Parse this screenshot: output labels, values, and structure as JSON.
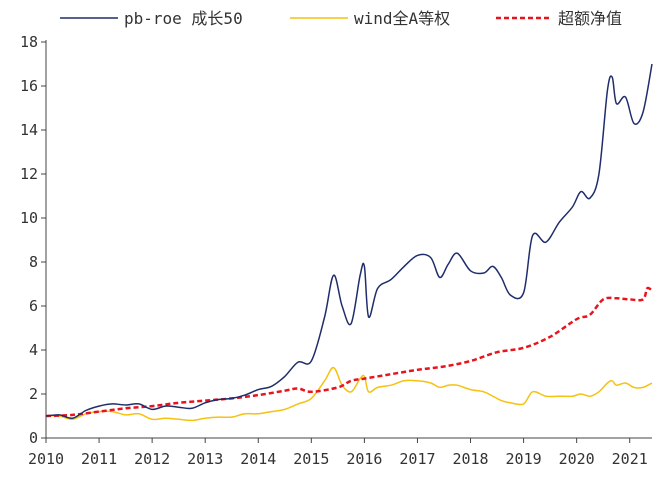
{
  "chart_data": {
    "type": "line",
    "title": "",
    "xlabel": "",
    "ylabel": "",
    "x_ticks": [
      "2010",
      "2011",
      "2012",
      "2013",
      "2014",
      "2015",
      "2016",
      "2017",
      "2018",
      "2019",
      "2020",
      "2021"
    ],
    "y_ticks": [
      "0",
      "2",
      "4",
      "6",
      "8",
      "10",
      "12",
      "14",
      "16",
      "18"
    ],
    "xlim": [
      2010.0,
      2021.42
    ],
    "ylim": [
      0,
      18
    ],
    "grid": false,
    "legend_position": "top",
    "series": [
      {
        "name": "pb-roe 成长50",
        "color": "#1f2d6b",
        "style": "solid",
        "points": [
          [
            2010.0,
            1.0
          ],
          [
            2010.25,
            1.05
          ],
          [
            2010.5,
            0.9
          ],
          [
            2010.75,
            1.25
          ],
          [
            2011.0,
            1.45
          ],
          [
            2011.25,
            1.55
          ],
          [
            2011.5,
            1.5
          ],
          [
            2011.75,
            1.55
          ],
          [
            2012.0,
            1.3
          ],
          [
            2012.25,
            1.45
          ],
          [
            2012.5,
            1.4
          ],
          [
            2012.75,
            1.35
          ],
          [
            2013.0,
            1.6
          ],
          [
            2013.25,
            1.75
          ],
          [
            2013.5,
            1.8
          ],
          [
            2013.75,
            1.95
          ],
          [
            2014.0,
            2.2
          ],
          [
            2014.25,
            2.35
          ],
          [
            2014.5,
            2.8
          ],
          [
            2014.75,
            3.45
          ],
          [
            2015.0,
            3.5
          ],
          [
            2015.25,
            5.5
          ],
          [
            2015.42,
            7.4
          ],
          [
            2015.58,
            6.0
          ],
          [
            2015.75,
            5.2
          ],
          [
            2015.92,
            7.4
          ],
          [
            2016.0,
            7.8
          ],
          [
            2016.08,
            5.5
          ],
          [
            2016.25,
            6.8
          ],
          [
            2016.5,
            7.2
          ],
          [
            2016.75,
            7.8
          ],
          [
            2017.0,
            8.3
          ],
          [
            2017.25,
            8.2
          ],
          [
            2017.42,
            7.3
          ],
          [
            2017.58,
            7.9
          ],
          [
            2017.75,
            8.4
          ],
          [
            2018.0,
            7.6
          ],
          [
            2018.25,
            7.5
          ],
          [
            2018.42,
            7.8
          ],
          [
            2018.58,
            7.3
          ],
          [
            2018.75,
            6.5
          ],
          [
            2019.0,
            6.6
          ],
          [
            2019.17,
            9.2
          ],
          [
            2019.42,
            8.9
          ],
          [
            2019.67,
            9.8
          ],
          [
            2019.92,
            10.5
          ],
          [
            2020.08,
            11.2
          ],
          [
            2020.25,
            10.9
          ],
          [
            2020.42,
            12.0
          ],
          [
            2020.58,
            15.8
          ],
          [
            2020.67,
            16.4
          ],
          [
            2020.75,
            15.2
          ],
          [
            2020.92,
            15.5
          ],
          [
            2021.08,
            14.3
          ],
          [
            2021.25,
            14.8
          ],
          [
            2021.42,
            17.0
          ]
        ]
      },
      {
        "name": "wind全A等权",
        "color": "#f5c211",
        "style": "solid",
        "points": [
          [
            2010.0,
            1.0
          ],
          [
            2010.25,
            1.0
          ],
          [
            2010.5,
            0.85
          ],
          [
            2010.75,
            1.1
          ],
          [
            2011.0,
            1.2
          ],
          [
            2011.25,
            1.2
          ],
          [
            2011.5,
            1.05
          ],
          [
            2011.75,
            1.1
          ],
          [
            2012.0,
            0.85
          ],
          [
            2012.25,
            0.9
          ],
          [
            2012.5,
            0.85
          ],
          [
            2012.75,
            0.8
          ],
          [
            2013.0,
            0.9
          ],
          [
            2013.25,
            0.95
          ],
          [
            2013.5,
            0.95
          ],
          [
            2013.75,
            1.1
          ],
          [
            2014.0,
            1.1
          ],
          [
            2014.25,
            1.2
          ],
          [
            2014.5,
            1.3
          ],
          [
            2014.75,
            1.55
          ],
          [
            2015.0,
            1.8
          ],
          [
            2015.25,
            2.6
          ],
          [
            2015.42,
            3.2
          ],
          [
            2015.58,
            2.4
          ],
          [
            2015.75,
            2.1
          ],
          [
            2015.92,
            2.7
          ],
          [
            2016.0,
            2.8
          ],
          [
            2016.08,
            2.1
          ],
          [
            2016.25,
            2.3
          ],
          [
            2016.5,
            2.4
          ],
          [
            2016.75,
            2.6
          ],
          [
            2017.0,
            2.6
          ],
          [
            2017.25,
            2.5
          ],
          [
            2017.42,
            2.3
          ],
          [
            2017.58,
            2.4
          ],
          [
            2017.75,
            2.4
          ],
          [
            2018.0,
            2.2
          ],
          [
            2018.25,
            2.1
          ],
          [
            2018.42,
            1.9
          ],
          [
            2018.58,
            1.7
          ],
          [
            2018.75,
            1.6
          ],
          [
            2019.0,
            1.55
          ],
          [
            2019.17,
            2.1
          ],
          [
            2019.42,
            1.9
          ],
          [
            2019.67,
            1.9
          ],
          [
            2019.92,
            1.9
          ],
          [
            2020.08,
            2.0
          ],
          [
            2020.25,
            1.9
          ],
          [
            2020.42,
            2.1
          ],
          [
            2020.58,
            2.5
          ],
          [
            2020.67,
            2.6
          ],
          [
            2020.75,
            2.4
          ],
          [
            2020.92,
            2.5
          ],
          [
            2021.08,
            2.3
          ],
          [
            2021.25,
            2.3
          ],
          [
            2021.42,
            2.5
          ]
        ]
      },
      {
        "name": "超额净值",
        "color": "#e8141c",
        "style": "dashed",
        "points": [
          [
            2010.0,
            1.0
          ],
          [
            2010.5,
            1.05
          ],
          [
            2011.0,
            1.2
          ],
          [
            2011.5,
            1.35
          ],
          [
            2012.0,
            1.45
          ],
          [
            2012.5,
            1.6
          ],
          [
            2013.0,
            1.7
          ],
          [
            2013.5,
            1.8
          ],
          [
            2014.0,
            1.95
          ],
          [
            2014.5,
            2.15
          ],
          [
            2014.75,
            2.25
          ],
          [
            2015.0,
            2.1
          ],
          [
            2015.5,
            2.3
          ],
          [
            2015.75,
            2.6
          ],
          [
            2016.0,
            2.7
          ],
          [
            2016.5,
            2.9
          ],
          [
            2017.0,
            3.1
          ],
          [
            2017.5,
            3.25
          ],
          [
            2018.0,
            3.5
          ],
          [
            2018.5,
            3.9
          ],
          [
            2019.0,
            4.1
          ],
          [
            2019.5,
            4.6
          ],
          [
            2020.0,
            5.4
          ],
          [
            2020.25,
            5.6
          ],
          [
            2020.5,
            6.3
          ],
          [
            2020.75,
            6.35
          ],
          [
            2021.0,
            6.3
          ],
          [
            2021.25,
            6.3
          ],
          [
            2021.33,
            6.8
          ],
          [
            2021.42,
            6.7
          ]
        ]
      }
    ]
  }
}
